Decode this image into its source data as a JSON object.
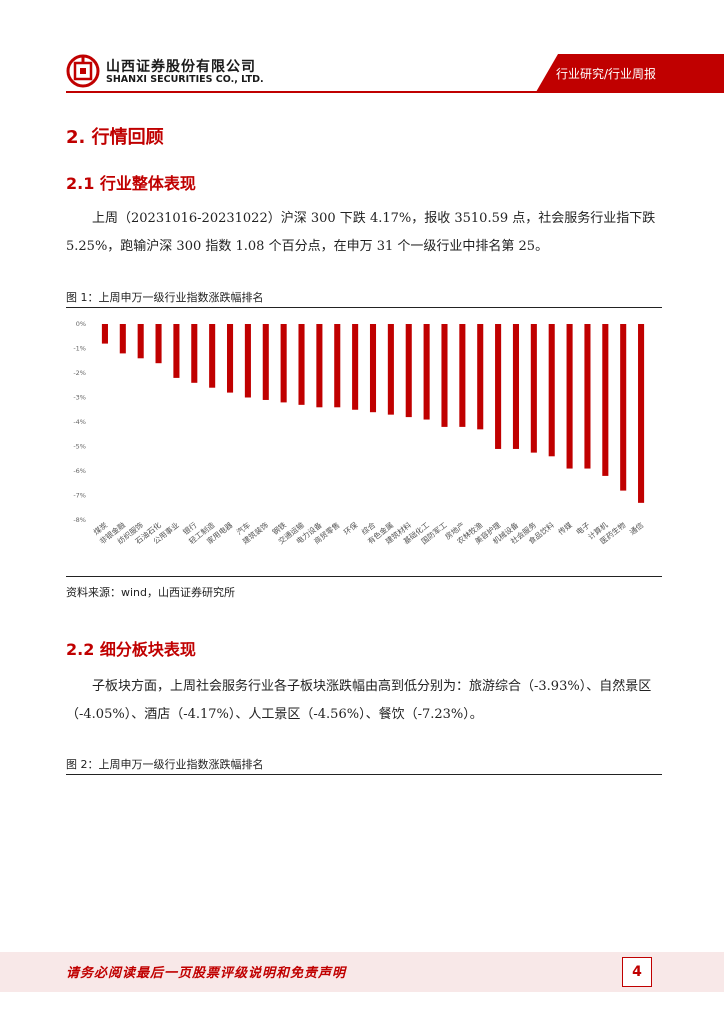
{
  "header": {
    "company_cn": "山西证券股份有限公司",
    "company_en": "SHANXI SECURITIES CO., LTD.",
    "category": "行业研究/行业周报"
  },
  "section": {
    "title": "2. 行情回顾",
    "sub1_title": "2.1  行业整体表现",
    "sub1_para": "上周（20231016-20231022）沪深 300 下跌 4.17%，报收 3510.59 点，社会服务行业指下跌 5.25%，跑输沪深 300 指数 1.08 个百分点，在申万 31 个一级行业中排名第 25。",
    "fig1_caption": "图 1：上周申万一级行业指数涨跌幅排名",
    "fig1_source": "资料来源：wind，山西证券研究所",
    "sub2_title": "2.2  细分板块表现",
    "sub2_para": "子板块方面，上周社会服务行业各子板块涨跌幅由高到低分别为：旅游综合（-3.93%）、自然景区（-4.05%）、酒店（-4.17%）、人工景区（-4.56%）、餐饮（-7.23%）。",
    "fig2_caption": "图 2：上周申万一级行业指数涨跌幅排名"
  },
  "footer": {
    "disclaimer": "请务必阅读最后一页股票评级说明和免责声明",
    "page": "4"
  },
  "colors": {
    "accent": "#c00000",
    "bar": "#c00000",
    "footer_bg": "#f8e8e8"
  },
  "chart_data": {
    "type": "bar",
    "categories": [
      "煤炭",
      "非银金融",
      "纺织服饰",
      "石油石化",
      "公用事业",
      "银行",
      "轻工制造",
      "家用电器",
      "汽车",
      "建筑装饰",
      "钢铁",
      "交通运输",
      "电力设备",
      "商贸零售",
      "环保",
      "综合",
      "有色金属",
      "建筑材料",
      "基础化工",
      "国防军工",
      "房地产",
      "农林牧渔",
      "美容护理",
      "机械设备",
      "社会服务",
      "食品饮料",
      "传媒",
      "电子",
      "计算机",
      "医药生物",
      "通信"
    ],
    "values": [
      -0.8,
      -1.2,
      -1.4,
      -1.6,
      -2.2,
      -2.4,
      -2.6,
      -2.8,
      -3.0,
      -3.1,
      -3.2,
      -3.3,
      -3.4,
      -3.4,
      -3.5,
      -3.6,
      -3.7,
      -3.8,
      -3.9,
      -4.2,
      -4.2,
      -4.3,
      -5.1,
      -5.1,
      -5.25,
      -5.4,
      -5.9,
      -5.9,
      -6.2,
      -6.8,
      -7.3
    ],
    "ylim": [
      -8,
      0
    ],
    "yticks": [
      "0%",
      "-1%",
      "-2%",
      "-3%",
      "-4%",
      "-5%",
      "-6%",
      "-7%",
      "-8%"
    ],
    "grid": false,
    "legend": "none"
  }
}
